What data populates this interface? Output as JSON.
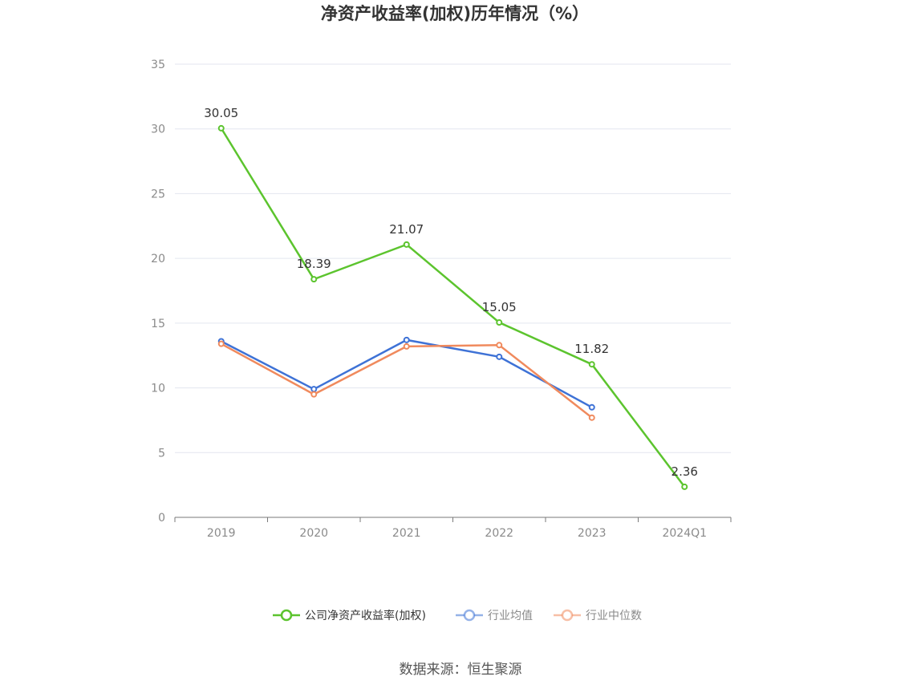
{
  "chart_data": {
    "type": "line",
    "title": "净资产收益率(加权)历年情况（%）",
    "categories": [
      "2019",
      "2020",
      "2021",
      "2022",
      "2023",
      "2024Q1"
    ],
    "ylim": [
      0,
      35
    ],
    "yticks": [
      "0",
      "5",
      "10",
      "15",
      "20",
      "25",
      "30",
      "35"
    ],
    "grid": true,
    "legend_position": "bottom",
    "series": [
      {
        "name": "公司净资产收益率(加权)",
        "color": "#5cc42e",
        "values": [
          30.05,
          18.39,
          21.07,
          15.05,
          11.82,
          2.36
        ],
        "labels": [
          "30.05",
          "18.39",
          "21.07",
          "15.05",
          "11.82",
          "2.36"
        ]
      },
      {
        "name": "行业均值",
        "color": "#3e72d6",
        "values": [
          13.6,
          9.9,
          13.7,
          12.4,
          8.5,
          null
        ]
      },
      {
        "name": "行业中位数",
        "color": "#f08a5d",
        "values": [
          13.4,
          9.5,
          13.2,
          13.3,
          7.7,
          null
        ]
      }
    ]
  },
  "footer": {
    "source": "数据来源：恒生聚源"
  }
}
